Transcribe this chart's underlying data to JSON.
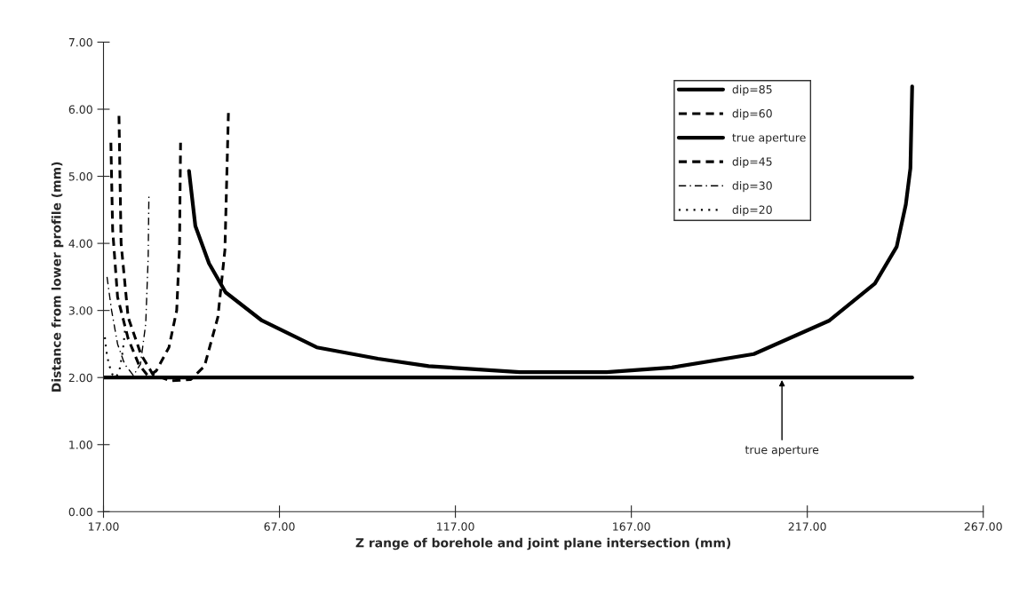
{
  "chart_data": {
    "type": "line",
    "xlabel": "Z range of borehole and joint plane intersection (mm)",
    "ylabel": "Distance from lower profile (mm)",
    "xlim": [
      17,
      267
    ],
    "ylim": [
      0,
      7
    ],
    "xticks": [
      {
        "value": 17,
        "label": "17.00"
      },
      {
        "value": 67,
        "label": "67.00"
      },
      {
        "value": 117,
        "label": "117.00"
      },
      {
        "value": 167,
        "label": "167.00"
      },
      {
        "value": 217,
        "label": "217.00"
      },
      {
        "value": 267,
        "label": "267.00"
      }
    ],
    "yticks": [
      {
        "value": 0,
        "label": "0.00"
      },
      {
        "value": 1,
        "label": "1.00"
      },
      {
        "value": 2,
        "label": "2.00"
      },
      {
        "value": 3,
        "label": "3.00"
      },
      {
        "value": 4,
        "label": "4.00"
      },
      {
        "value": 5,
        "label": "5.00"
      },
      {
        "value": 6,
        "label": "6.00"
      },
      {
        "value": 7,
        "label": "7.00"
      }
    ],
    "grid": false,
    "legend": "top right",
    "marker": "none",
    "series": [
      {
        "name": "dip=85",
        "color": "#000000",
        "line_style": "solid",
        "x": [
          41.3,
          43.1,
          47.0,
          51.7,
          62.0,
          77.6,
          95.0,
          109.4,
          135.3,
          160.0,
          178.5,
          201.8,
          223.3,
          236.2,
          242.4,
          245.0,
          246.3,
          246.8
        ],
        "values": [
          5.08,
          4.26,
          3.7,
          3.27,
          2.85,
          2.45,
          2.28,
          2.17,
          2.08,
          2.08,
          2.15,
          2.35,
          2.85,
          3.4,
          3.95,
          4.58,
          5.12,
          6.34
        ]
      },
      {
        "name": "dip=60",
        "color": "#000000",
        "line_style": "dashed",
        "x": [
          21.4,
          22.0,
          24.0,
          27.6,
          31.0,
          36.0,
          41.8,
          45.7,
          49.5,
          51.5,
          52.5
        ],
        "values": [
          5.9,
          4.0,
          2.9,
          2.35,
          2.05,
          1.95,
          1.97,
          2.17,
          2.9,
          3.9,
          5.95
        ]
      },
      {
        "name": "true aperture",
        "color": "#000000",
        "line_style": "solid",
        "x": [
          17,
          246.8
        ],
        "values": [
          2.0,
          2.0
        ]
      },
      {
        "name": "dip=45",
        "color": "#000000",
        "line_style": "dashed",
        "x": [
          19.1,
          19.6,
          21.0,
          24.0,
          27.0,
          29.7,
          32.0,
          35.6,
          37.8,
          38.6,
          38.9
        ],
        "values": [
          5.5,
          4.2,
          3.2,
          2.58,
          2.2,
          2.02,
          2.1,
          2.45,
          3.0,
          3.95,
          5.5
        ]
      },
      {
        "name": "dip=30",
        "color": "#000000",
        "line_style": "dashdot",
        "x": [
          18.0,
          19.3,
          21.0,
          23.0,
          25.5,
          27.5,
          29.0,
          29.7,
          29.9
        ],
        "values": [
          3.5,
          3.0,
          2.5,
          2.2,
          2.03,
          2.2,
          2.8,
          3.8,
          4.7
        ]
      },
      {
        "name": "dip=20",
        "color": "#000000",
        "line_style": "dotted",
        "x": [
          17.4,
          17.8,
          18.5,
          19.5,
          20.5,
          21.5,
          22.5,
          23.1
        ],
        "values": [
          2.6,
          2.4,
          2.2,
          2.05,
          2.0,
          2.1,
          2.4,
          2.7
        ]
      }
    ],
    "annotations": [
      {
        "text": "true aperture",
        "x": 209.8,
        "y": 2.0
      }
    ]
  }
}
